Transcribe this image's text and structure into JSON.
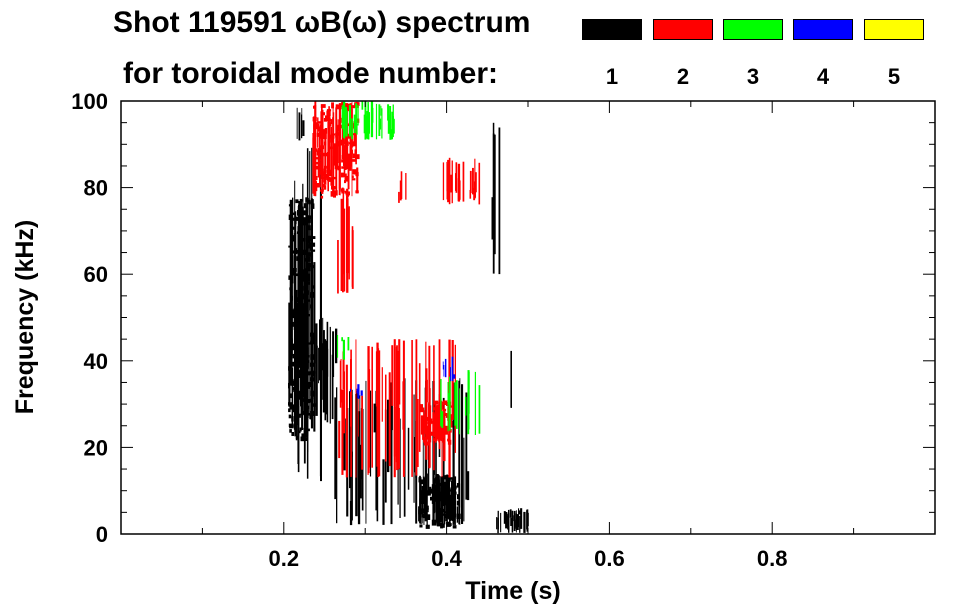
{
  "header": {
    "title_line1": "Shot 119591 ωB(ω) spectrum",
    "title_line2": "for toroidal mode number:"
  },
  "legend": [
    {
      "label": "1",
      "color": "#000000"
    },
    {
      "label": "2",
      "color": "#ff0000"
    },
    {
      "label": "3",
      "color": "#00ff00"
    },
    {
      "label": "4",
      "color": "#0000ff"
    },
    {
      "label": "5",
      "color": "#ffff00"
    }
  ],
  "chart_data": {
    "type": "heatmap",
    "title": "Shot 119591 ωB(ω) spectrum",
    "xlabel": "Time (s)",
    "ylabel": "Frequency (kHz)",
    "xlim": [
      0.0,
      1.0
    ],
    "ylim": [
      0,
      100
    ],
    "xticks": [
      0.2,
      0.4,
      0.6,
      0.8
    ],
    "xtick_labels": [
      "0.2",
      "0.4",
      "0.6",
      "0.8"
    ],
    "yticks": [
      0,
      20,
      40,
      60,
      80,
      100
    ],
    "ytick_labels": [
      "0",
      "20",
      "40",
      "60",
      "80",
      "100"
    ],
    "legend_title": "for toroidal mode number:",
    "legend_placement": "top",
    "grid": false,
    "series": [
      {
        "name": "1",
        "color": "#000000",
        "regions": [
          {
            "t": [
              0.205,
              0.235
            ],
            "f": [
              22,
              78
            ],
            "density": 0.95
          },
          {
            "t": [
              0.21,
              0.25
            ],
            "f": [
              12,
              90
            ],
            "density": 0.3
          },
          {
            "t": [
              0.235,
              0.265
            ],
            "f": [
              25,
              50
            ],
            "density": 0.5
          },
          {
            "t": [
              0.26,
              0.43
            ],
            "f": [
              2,
              36
            ],
            "density": 0.28
          },
          {
            "t": [
              0.365,
              0.415
            ],
            "f": [
              2,
              14
            ],
            "density": 0.85
          },
          {
            "t": [
              0.455,
              0.465
            ],
            "f": [
              60,
              95
            ],
            "density": 0.55
          },
          {
            "t": [
              0.46,
              0.5
            ],
            "f": [
              0,
              6
            ],
            "density": 0.6
          },
          {
            "t": [
              0.47,
              0.48
            ],
            "f": [
              28,
              46
            ],
            "density": 0.2
          },
          {
            "t": [
              0.215,
              0.225
            ],
            "f": [
              90,
              100
            ],
            "density": 0.4
          }
        ]
      },
      {
        "name": "2",
        "color": "#ff0000",
        "regions": [
          {
            "t": [
              0.235,
              0.29
            ],
            "f": [
              78,
              100
            ],
            "density": 0.85
          },
          {
            "t": [
              0.265,
              0.285
            ],
            "f": [
              55,
              80
            ],
            "density": 0.5
          },
          {
            "t": [
              0.265,
              0.41
            ],
            "f": [
              13,
              45
            ],
            "density": 0.3
          },
          {
            "t": [
              0.365,
              0.405
            ],
            "f": [
              21,
              31
            ],
            "density": 0.85
          },
          {
            "t": [
              0.395,
              0.44
            ],
            "f": [
              76,
              87
            ],
            "density": 0.4
          },
          {
            "t": [
              0.34,
              0.35
            ],
            "f": [
              76,
              84
            ],
            "density": 0.3
          }
        ]
      },
      {
        "name": "3",
        "color": "#00ff00",
        "regions": [
          {
            "t": [
              0.27,
              0.335
            ],
            "f": [
              91,
              100
            ],
            "density": 0.5
          },
          {
            "t": [
              0.39,
              0.44
            ],
            "f": [
              22,
              38
            ],
            "density": 0.25
          },
          {
            "t": [
              0.265,
              0.28
            ],
            "f": [
              40,
              46
            ],
            "density": 0.25
          }
        ]
      },
      {
        "name": "4",
        "color": "#0000ff",
        "regions": [
          {
            "t": [
              0.395,
              0.41
            ],
            "f": [
              35,
              41
            ],
            "density": 0.35
          },
          {
            "t": [
              0.28,
              0.3
            ],
            "f": [
              31,
              35
            ],
            "density": 0.2
          }
        ]
      },
      {
        "name": "5",
        "color": "#ffff00",
        "regions": []
      }
    ]
  }
}
